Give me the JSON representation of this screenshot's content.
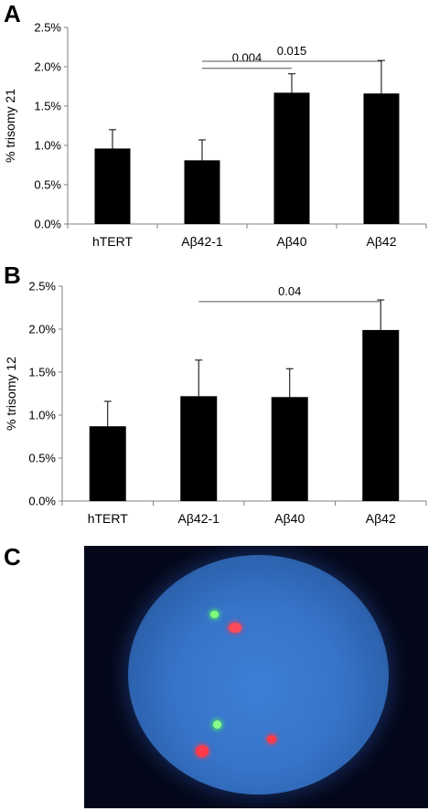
{
  "panels": {
    "a": {
      "letter": "A"
    },
    "b": {
      "letter": "B"
    },
    "c": {
      "letter": "C"
    }
  },
  "colors": {
    "bar": "#000000",
    "axis": "#808080",
    "micro_background": "#05081a",
    "nucleus_blue": "#3674c9",
    "signal_red": "#ff3a4a",
    "signal_green": "#6bff6b"
  },
  "chart_data": [
    {
      "type": "bar",
      "title": "",
      "xlabel": "",
      "ylabel": "% trisomy 21",
      "categories": [
        "hTERT",
        "Aβ42-1",
        "Aβ40",
        "Aβ42"
      ],
      "values": [
        0.96,
        0.81,
        1.67,
        1.66
      ],
      "errors": [
        0.24,
        0.26,
        0.24,
        0.42
      ],
      "ylim": [
        0,
        2.5
      ],
      "ytick_labels": [
        "0.0%",
        "0.5%",
        "1.0%",
        "1.5%",
        "2.0%",
        "2.5%"
      ],
      "ytick_values": [
        0,
        0.5,
        1.0,
        1.5,
        2.0,
        2.5
      ],
      "significance": [
        {
          "from": 1,
          "to": 2,
          "label": "0.004",
          "level": 1.98
        },
        {
          "from": 1,
          "to": 3,
          "label": "0.015",
          "level": 2.07
        }
      ],
      "grid": false
    },
    {
      "type": "bar",
      "title": "",
      "xlabel": "",
      "ylabel": "% trisomy 12",
      "categories": [
        "hTERT",
        "Aβ42-1",
        "Aβ40",
        "Aβ42"
      ],
      "values": [
        0.87,
        1.22,
        1.21,
        1.99
      ],
      "errors": [
        0.29,
        0.42,
        0.33,
        0.35
      ],
      "ylim": [
        0,
        2.5
      ],
      "ytick_labels": [
        "0.0%",
        "0.5%",
        "1.0%",
        "1.5%",
        "2.0%",
        "2.5%"
      ],
      "ytick_values": [
        0,
        0.5,
        1.0,
        1.5,
        2.0,
        2.5
      ],
      "significance": [
        {
          "from": 1,
          "to": 3,
          "label": "0.04",
          "level": 2.32
        }
      ],
      "grid": false
    }
  ],
  "micrograph": {
    "red_spots": 3,
    "green_spots": 2
  }
}
